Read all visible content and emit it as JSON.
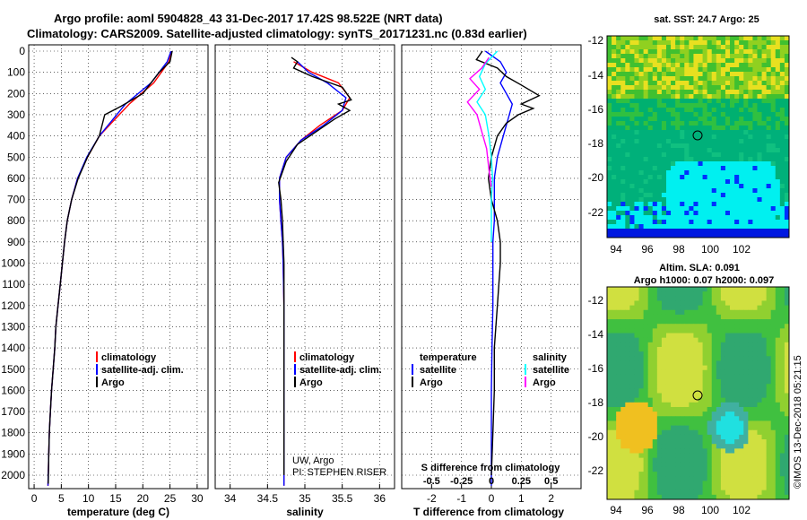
{
  "header": {
    "title_line1": "Argo profile: aoml 5904828_43 31-Dec-2017 17.42S 98.522E (NRT data)",
    "title_line2": "Climatology: CARS2009. Satellite-adjusted climatology: synTS_20171231.nc (0.83d earlier)"
  },
  "colors": {
    "climatology": "#ff0000",
    "satellite": "#0000ff",
    "argo": "#000000",
    "sat_salinity": "#00ffff",
    "argo_salinity": "#ff00ff"
  },
  "depth_ticks": [
    "0",
    "100",
    "200",
    "300",
    "400",
    "500",
    "600",
    "700",
    "800",
    "900",
    "1000",
    "1100",
    "1200",
    "1300",
    "1400",
    "1500",
    "1600",
    "1700",
    "1800",
    "1900",
    "2000"
  ],
  "panels": {
    "temperature": {
      "xlabel": "temperature (deg C)",
      "xticks": [
        "0",
        "5",
        "10",
        "15",
        "20",
        "25",
        "30"
      ],
      "legend": [
        "climatology",
        "satellite-adj. clim.",
        "Argo"
      ]
    },
    "salinity": {
      "xlabel": "salinity",
      "xticks": [
        "34",
        "34.5",
        "35",
        "35.5",
        "36"
      ],
      "legend": [
        "climatology",
        "satellite-adj. clim.",
        "Argo"
      ],
      "note1": "UW, Argo",
      "note2": "PI: STEPHEN RISER"
    },
    "difference": {
      "xlabel": "T difference from climatology",
      "xticks": [
        "-2",
        "-1",
        "0",
        "1",
        "2"
      ],
      "s_label": "S difference from climatology",
      "s_ticks": [
        "-0.5",
        "-0.25",
        "0",
        "0.25",
        "0.5"
      ],
      "legend_temp_title": "temperature",
      "legend_sal_title": "salinity",
      "legend_temp": [
        "satellite",
        "Argo"
      ],
      "legend_sal": [
        "satellite",
        "Argo"
      ]
    }
  },
  "maps": {
    "sst_title": "sat. SST: 24.7 Argo: 25",
    "sla_title1": "Altim. SLA: 0.091",
    "sla_title2": "Argo h1000: 0.07 h2000: 0.097",
    "lat_ticks": [
      "-12",
      "-14",
      "-16",
      "-18",
      "-20",
      "-22"
    ],
    "lon_ticks": [
      "94",
      "96",
      "98",
      "100",
      "102"
    ],
    "watermark": "©IMOS 13-Dec-2018 05:21:15"
  },
  "chart_data": [
    {
      "type": "line",
      "title": "",
      "xlabel": "temperature (deg C)",
      "ylabel": "",
      "xlim": [
        -1,
        32
      ],
      "ylim": [
        2050,
        0
      ],
      "series": [
        {
          "name": "climatology",
          "x": [
            25.3,
            24.8,
            22.0,
            17.5,
            12.0,
            9.8,
            8.0,
            6.9,
            6.1,
            5.6,
            5.2,
            4.8,
            4.4,
            4.0,
            3.8,
            3.5,
            3.2,
            3.0,
            2.8,
            2.7,
            2.55
          ],
          "y": [
            0,
            50,
            150,
            250,
            400,
            500,
            600,
            700,
            800,
            900,
            1000,
            1100,
            1200,
            1300,
            1400,
            1500,
            1600,
            1700,
            1800,
            1900,
            2050
          ]
        },
        {
          "name": "satellite-adj. clim.",
          "x": [
            25.2,
            24.5,
            21.5,
            16.8,
            12.0,
            9.7,
            8.0,
            6.9,
            6.1,
            5.6,
            5.2,
            4.8,
            4.4,
            4.0,
            3.8,
            3.5,
            3.2,
            3.0,
            2.8,
            2.7,
            2.55
          ],
          "y": [
            0,
            50,
            150,
            250,
            400,
            500,
            600,
            700,
            800,
            900,
            1000,
            1100,
            1200,
            1300,
            1400,
            1500,
            1600,
            1700,
            1800,
            1900,
            2050
          ]
        },
        {
          "name": "Argo",
          "x": [
            25.4,
            25.0,
            23.0,
            20.0,
            16.0,
            13.0,
            12.0,
            9.8,
            8.1,
            6.9,
            6.1,
            5.6,
            5.2,
            4.8,
            4.4,
            4.0,
            3.8,
            3.5,
            3.2,
            3.0,
            2.8,
            2.7,
            2.6
          ],
          "y": [
            0,
            50,
            100,
            200,
            260,
            300,
            400,
            500,
            600,
            700,
            800,
            900,
            1000,
            1100,
            1200,
            1300,
            1400,
            1500,
            1600,
            1700,
            1800,
            1900,
            2040
          ]
        }
      ]
    },
    {
      "type": "line",
      "title": "",
      "xlabel": "salinity",
      "ylabel": "",
      "xlim": [
        33.8,
        36.2
      ],
      "ylim": [
        2050,
        0
      ],
      "series": [
        {
          "name": "climatology",
          "x": [
            34.85,
            35.1,
            35.45,
            35.6,
            35.5,
            35.2,
            34.95,
            34.75,
            34.66,
            34.66,
            34.68,
            34.7,
            34.71,
            34.72,
            34.72,
            34.72,
            34.72,
            34.72,
            34.72,
            34.72,
            34.72
          ],
          "y": [
            50,
            100,
            150,
            220,
            280,
            350,
            420,
            500,
            600,
            700,
            800,
            900,
            1000,
            1200,
            1400,
            1500,
            1600,
            1700,
            1800,
            1900,
            2050
          ]
        },
        {
          "name": "satellite-adj. clim.",
          "x": [
            34.9,
            35.05,
            35.3,
            35.55,
            35.5,
            35.25,
            34.95,
            34.75,
            34.66,
            34.66,
            34.68,
            34.7,
            34.71,
            34.72,
            34.72,
            34.72,
            34.72,
            34.72,
            34.72,
            34.72,
            34.72
          ],
          "y": [
            50,
            100,
            150,
            220,
            280,
            350,
            420,
            500,
            600,
            700,
            800,
            900,
            1000,
            1200,
            1400,
            1500,
            1600,
            1700,
            1800,
            1900,
            2050
          ]
        },
        {
          "name": "Argo",
          "x": [
            34.82,
            34.9,
            34.85,
            35.1,
            35.5,
            35.62,
            35.45,
            35.6,
            35.4,
            35.15,
            34.9,
            34.75,
            34.65,
            34.68,
            34.7,
            34.71,
            34.72,
            34.72,
            34.72,
            34.72,
            34.72,
            34.72
          ],
          "y": [
            30,
            50,
            80,
            120,
            170,
            230,
            250,
            280,
            320,
            380,
            440,
            520,
            620,
            700,
            800,
            900,
            1000,
            1200,
            1400,
            1600,
            1800,
            2000
          ]
        }
      ]
    },
    {
      "type": "line",
      "title": "",
      "xlabel": "T difference from climatology",
      "ylabel": "",
      "xlim": [
        -3,
        3
      ],
      "ylim": [
        2050,
        0
      ],
      "series": [
        {
          "name": "satellite",
          "x": [
            -0.2,
            0.3,
            0.5,
            0.3,
            0.5,
            0.7,
            0.6,
            0.4,
            0.2,
            0.1,
            0.1,
            0.1,
            0.05,
            0.05,
            0.05,
            0.02,
            0.0,
            0.0,
            0.0,
            0.0
          ],
          "y": [
            0,
            50,
            100,
            150,
            200,
            250,
            300,
            400,
            500,
            600,
            700,
            800,
            900,
            1000,
            1200,
            1400,
            1600,
            1800,
            1900,
            2050
          ]
        },
        {
          "name": "Argo",
          "x": [
            -0.3,
            -0.5,
            0.2,
            0.5,
            1.0,
            1.6,
            1.0,
            1.4,
            0.9,
            0.5,
            0.2,
            0.0,
            -0.1,
            0.0,
            0.2,
            0.3,
            0.3,
            0.2,
            0.1,
            0.1,
            0.05,
            0.0
          ],
          "y": [
            0,
            40,
            80,
            120,
            160,
            210,
            250,
            270,
            300,
            340,
            400,
            500,
            600,
            700,
            800,
            900,
            1000,
            1200,
            1400,
            1600,
            1800,
            2000
          ]
        },
        {
          "name": "satellite (salinity)",
          "x": [
            0.05,
            -0.05,
            -0.1,
            -0.05,
            -0.12,
            -0.05,
            -0.02,
            0.0,
            0.01,
            0.0,
            0.0,
            0.0
          ],
          "y": [
            0,
            60,
            120,
            180,
            240,
            300,
            400,
            500,
            600,
            700,
            800,
            900
          ]
        },
        {
          "name": "Argo (salinity)",
          "x": [
            -0.02,
            -0.08,
            -0.18,
            -0.1,
            -0.2,
            -0.12,
            -0.08,
            -0.04,
            -0.02,
            0.0
          ],
          "y": [
            30,
            80,
            130,
            180,
            240,
            300,
            380,
            460,
            560,
            640
          ]
        }
      ]
    }
  ]
}
